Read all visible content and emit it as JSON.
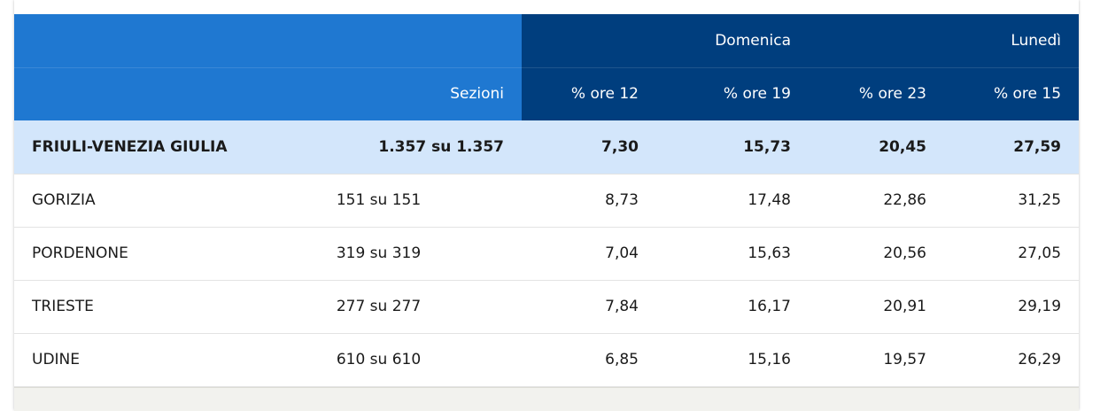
{
  "header": {
    "days": [
      "Domenica",
      "Lunedì"
    ],
    "columns": {
      "sezioni": "Sezioni",
      "ore12": "% ore 12",
      "ore19": "% ore 19",
      "ore23": "% ore 23",
      "ore15": "% ore 15"
    }
  },
  "colors": {
    "header_light": "#1f78d1",
    "header_dark": "#003e7e",
    "region_row": "#d3e6fb"
  },
  "rows": [
    {
      "name": "FRIULI-VENEZIA GIULIA",
      "sezioni": "1.357 su 1.357",
      "ore12": "7,30",
      "ore19": "15,73",
      "ore23": "20,45",
      "ore15": "27,59"
    },
    {
      "name": "GORIZIA",
      "sezioni": "151 su 151",
      "ore12": "8,73",
      "ore19": "17,48",
      "ore23": "22,86",
      "ore15": "31,25"
    },
    {
      "name": "PORDENONE",
      "sezioni": "319 su 319",
      "ore12": "7,04",
      "ore19": "15,63",
      "ore23": "20,56",
      "ore15": "27,05"
    },
    {
      "name": "TRIESTE",
      "sezioni": "277 su 277",
      "ore12": "7,84",
      "ore19": "16,17",
      "ore23": "20,91",
      "ore15": "29,19"
    },
    {
      "name": "UDINE",
      "sezioni": "610 su 610",
      "ore12": "6,85",
      "ore19": "15,16",
      "ore23": "19,57",
      "ore15": "26,29"
    }
  ]
}
